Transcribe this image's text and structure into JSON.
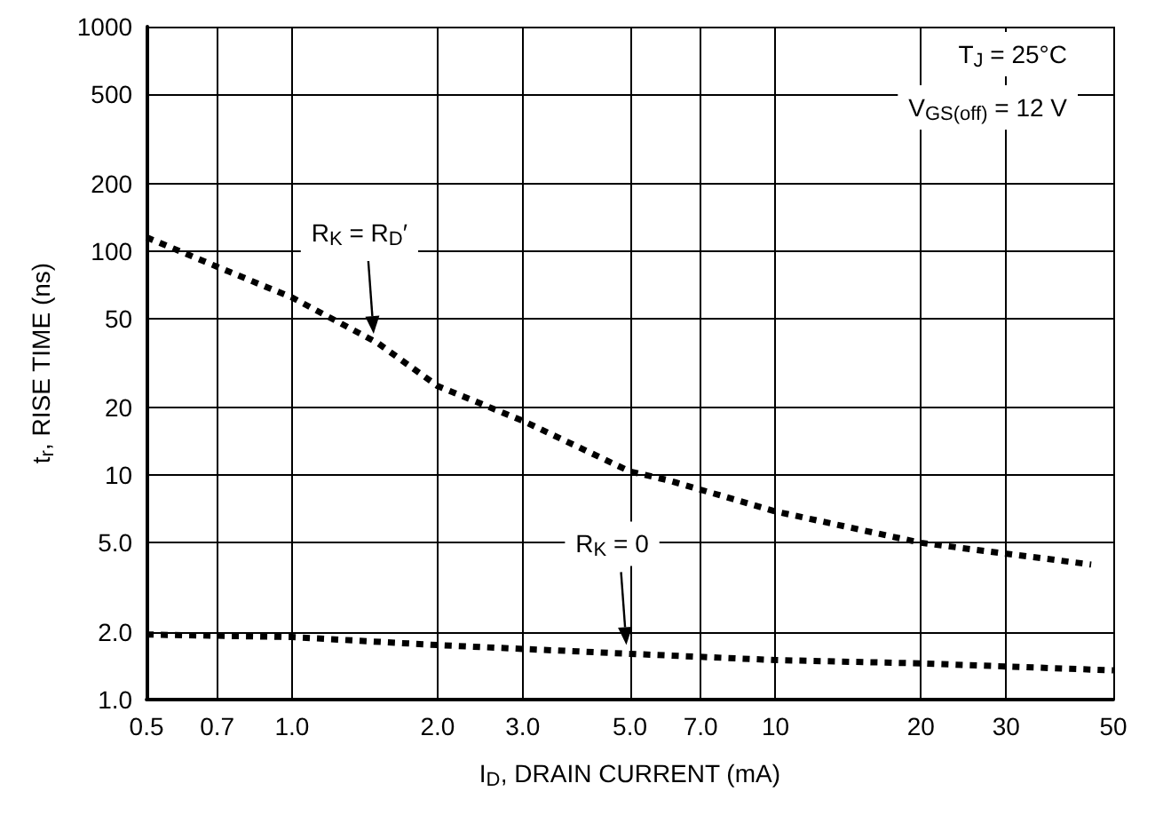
{
  "chart_data": {
    "type": "line",
    "xlabel": "I$_{D}$, DRAIN CURRENT (mA)",
    "ylabel": "t$_{r}$, RISE TIME (ns)",
    "log": "xy",
    "xlim": [
      0.5,
      50
    ],
    "xticks": [
      0.5,
      0.7,
      {
        "value": 1,
        "label": "1.0"
      },
      {
        "value": 2,
        "label": "2.0"
      },
      {
        "value": 3,
        "label": "3.0"
      },
      {
        "value": 5,
        "label": "5.0"
      },
      {
        "value": 7,
        "label": "7.0"
      },
      10,
      20,
      30,
      50
    ],
    "ylim": [
      1,
      1000
    ],
    "yticks": [
      {
        "value": 1,
        "label": "1.0"
      },
      {
        "value": 2,
        "label": "2.0"
      },
      {
        "value": 5,
        "label": "5.0"
      },
      10,
      20,
      50,
      100,
      200,
      500,
      1000
    ],
    "series": [
      {
        "name": "R$_{K}$ = R$_{D}$′",
        "color": "#000000",
        "x": [
          0.5,
          0.7,
          1.0,
          1.5,
          2.0,
          3.0,
          5.0,
          6.0,
          10,
          20,
          45
        ],
        "values": [
          115,
          85,
          62,
          39,
          25,
          17.5,
          10.4,
          9.5,
          6.9,
          5.0,
          4.0
        ]
      },
      {
        "name": "R$_{K}$ = 0",
        "color": "#000000",
        "x": [
          0.5,
          1.0,
          2.0,
          5.0,
          10,
          20,
          50
        ],
        "values": [
          1.95,
          1.9,
          1.75,
          1.6,
          1.5,
          1.45,
          1.35
        ]
      }
    ],
    "annotations": [
      "T$_{J}$ = 25°C",
      "V$_{GS(off)}$ = 12 V"
    ],
    "grid": true,
    "legend": false,
    "marker": "none",
    "line_style": "dashed"
  }
}
